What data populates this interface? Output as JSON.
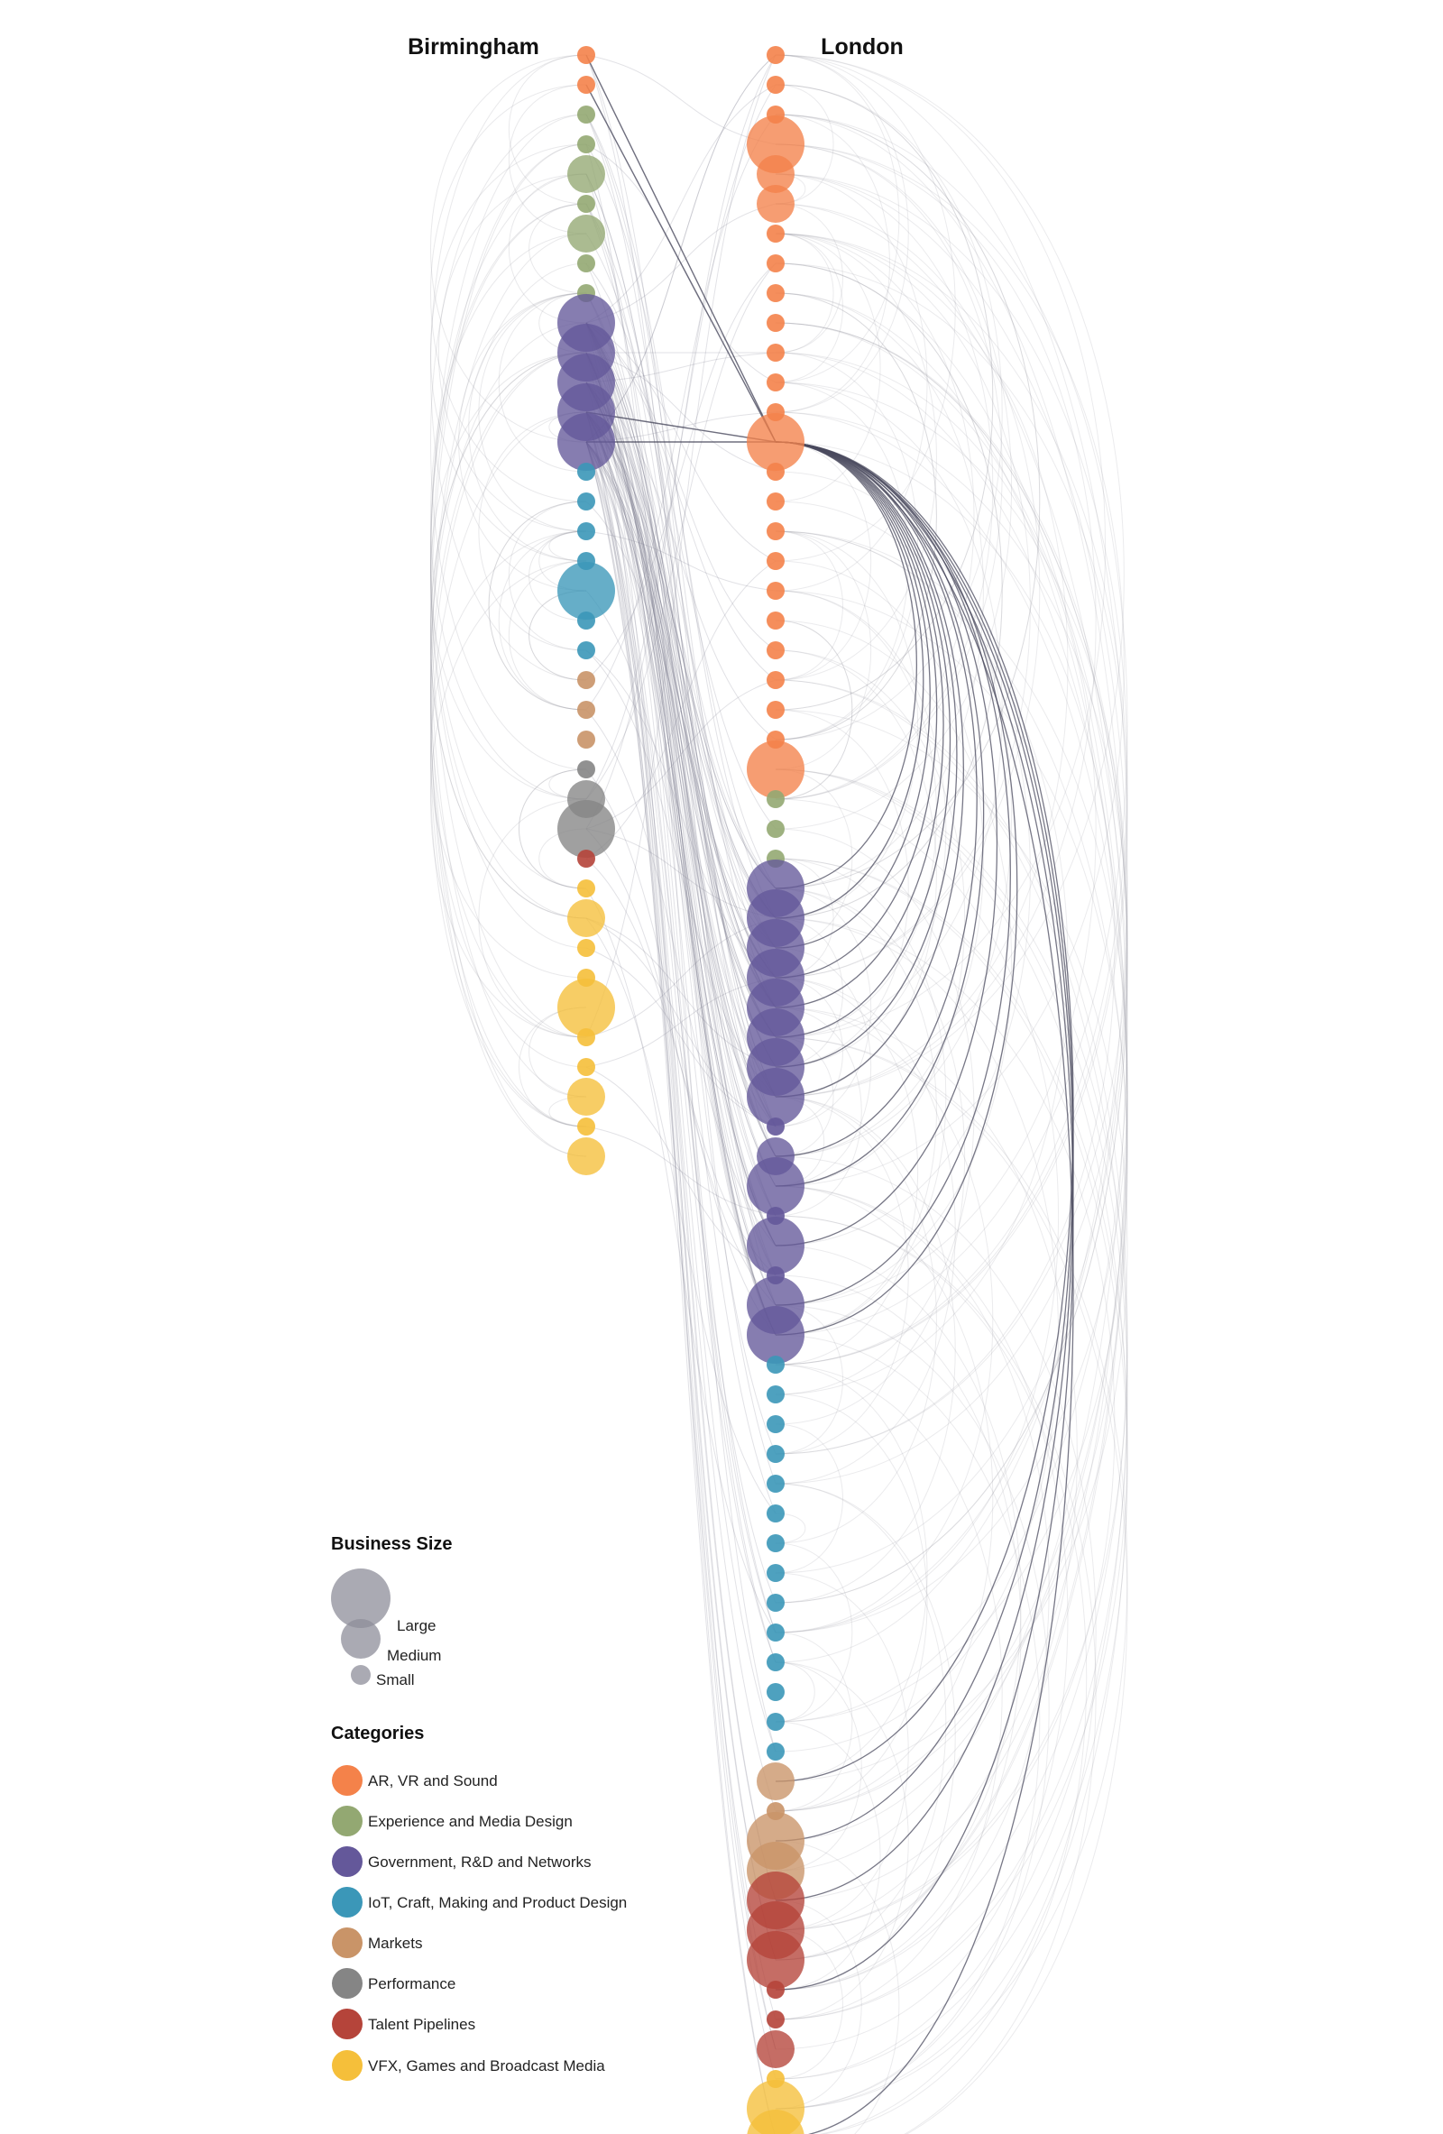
{
  "columns": {
    "left": "Birmingham",
    "right": "London"
  },
  "legend": {
    "size_title": "Business Size",
    "sizes": [
      {
        "key": "large",
        "label": "Large"
      },
      {
        "key": "medium",
        "label": "Medium"
      },
      {
        "key": "small",
        "label": "Small"
      }
    ],
    "categories_title": "Categories",
    "categories": [
      {
        "key": "ar",
        "label": "AR, VR and Sound",
        "color": "#F4824A"
      },
      {
        "key": "exp",
        "label": "Experience and Media Design",
        "color": "#93A872"
      },
      {
        "key": "gov",
        "label": "Government, R&D and Networks",
        "color": "#64589A"
      },
      {
        "key": "iot",
        "label": "IoT, Craft, Making and Product Design",
        "color": "#3B97B8"
      },
      {
        "key": "mkt",
        "label": "Markets",
        "color": "#C99468"
      },
      {
        "key": "perf",
        "label": "Performance",
        "color": "#858585"
      },
      {
        "key": "tal",
        "label": "Talent Pipelines",
        "color": "#B5443A"
      },
      {
        "key": "vfx",
        "label": "VFX, Games and Broadcast Media",
        "color": "#F5BF3A"
      }
    ]
  },
  "network": {
    "birmingham_nodes": [
      {
        "cat": "ar",
        "size": "small"
      },
      {
        "cat": "ar",
        "size": "small"
      },
      {
        "cat": "exp",
        "size": "small"
      },
      {
        "cat": "exp",
        "size": "small"
      },
      {
        "cat": "exp",
        "size": "medium"
      },
      {
        "cat": "exp",
        "size": "small"
      },
      {
        "cat": "exp",
        "size": "medium"
      },
      {
        "cat": "exp",
        "size": "small"
      },
      {
        "cat": "exp",
        "size": "small"
      },
      {
        "cat": "gov",
        "size": "large"
      },
      {
        "cat": "gov",
        "size": "large"
      },
      {
        "cat": "gov",
        "size": "large"
      },
      {
        "cat": "gov",
        "size": "large"
      },
      {
        "cat": "gov",
        "size": "large"
      },
      {
        "cat": "iot",
        "size": "small"
      },
      {
        "cat": "iot",
        "size": "small"
      },
      {
        "cat": "iot",
        "size": "small"
      },
      {
        "cat": "iot",
        "size": "small"
      },
      {
        "cat": "iot",
        "size": "large"
      },
      {
        "cat": "iot",
        "size": "small"
      },
      {
        "cat": "iot",
        "size": "small"
      },
      {
        "cat": "mkt",
        "size": "small"
      },
      {
        "cat": "mkt",
        "size": "small"
      },
      {
        "cat": "mkt",
        "size": "small"
      },
      {
        "cat": "perf",
        "size": "small"
      },
      {
        "cat": "perf",
        "size": "medium"
      },
      {
        "cat": "perf",
        "size": "large"
      },
      {
        "cat": "tal",
        "size": "small"
      },
      {
        "cat": "vfx",
        "size": "small"
      },
      {
        "cat": "vfx",
        "size": "medium"
      },
      {
        "cat": "vfx",
        "size": "small"
      },
      {
        "cat": "vfx",
        "size": "small"
      },
      {
        "cat": "vfx",
        "size": "large"
      },
      {
        "cat": "vfx",
        "size": "small"
      },
      {
        "cat": "vfx",
        "size": "small"
      },
      {
        "cat": "vfx",
        "size": "medium"
      },
      {
        "cat": "vfx",
        "size": "small"
      },
      {
        "cat": "vfx",
        "size": "medium"
      }
    ],
    "london_nodes": [
      {
        "cat": "ar",
        "size": "small"
      },
      {
        "cat": "ar",
        "size": "small"
      },
      {
        "cat": "ar",
        "size": "small"
      },
      {
        "cat": "ar",
        "size": "large"
      },
      {
        "cat": "ar",
        "size": "medium"
      },
      {
        "cat": "ar",
        "size": "medium"
      },
      {
        "cat": "ar",
        "size": "small"
      },
      {
        "cat": "ar",
        "size": "small"
      },
      {
        "cat": "ar",
        "size": "small"
      },
      {
        "cat": "ar",
        "size": "small"
      },
      {
        "cat": "ar",
        "size": "small"
      },
      {
        "cat": "ar",
        "size": "small"
      },
      {
        "cat": "ar",
        "size": "small"
      },
      {
        "cat": "ar",
        "size": "large"
      },
      {
        "cat": "ar",
        "size": "small"
      },
      {
        "cat": "ar",
        "size": "small"
      },
      {
        "cat": "ar",
        "size": "small"
      },
      {
        "cat": "ar",
        "size": "small"
      },
      {
        "cat": "ar",
        "size": "small"
      },
      {
        "cat": "ar",
        "size": "small"
      },
      {
        "cat": "ar",
        "size": "small"
      },
      {
        "cat": "ar",
        "size": "small"
      },
      {
        "cat": "ar",
        "size": "small"
      },
      {
        "cat": "ar",
        "size": "small"
      },
      {
        "cat": "ar",
        "size": "large"
      },
      {
        "cat": "exp",
        "size": "small"
      },
      {
        "cat": "exp",
        "size": "small"
      },
      {
        "cat": "exp",
        "size": "small"
      },
      {
        "cat": "gov",
        "size": "large"
      },
      {
        "cat": "gov",
        "size": "large"
      },
      {
        "cat": "gov",
        "size": "large"
      },
      {
        "cat": "gov",
        "size": "large"
      },
      {
        "cat": "gov",
        "size": "large"
      },
      {
        "cat": "gov",
        "size": "large"
      },
      {
        "cat": "gov",
        "size": "large"
      },
      {
        "cat": "gov",
        "size": "large"
      },
      {
        "cat": "gov",
        "size": "small"
      },
      {
        "cat": "gov",
        "size": "medium"
      },
      {
        "cat": "gov",
        "size": "large"
      },
      {
        "cat": "gov",
        "size": "small"
      },
      {
        "cat": "gov",
        "size": "large"
      },
      {
        "cat": "gov",
        "size": "small"
      },
      {
        "cat": "gov",
        "size": "large"
      },
      {
        "cat": "gov",
        "size": "large"
      },
      {
        "cat": "iot",
        "size": "small"
      },
      {
        "cat": "iot",
        "size": "small"
      },
      {
        "cat": "iot",
        "size": "small"
      },
      {
        "cat": "iot",
        "size": "small"
      },
      {
        "cat": "iot",
        "size": "small"
      },
      {
        "cat": "iot",
        "size": "small"
      },
      {
        "cat": "iot",
        "size": "small"
      },
      {
        "cat": "iot",
        "size": "small"
      },
      {
        "cat": "iot",
        "size": "small"
      },
      {
        "cat": "iot",
        "size": "small"
      },
      {
        "cat": "iot",
        "size": "small"
      },
      {
        "cat": "iot",
        "size": "small"
      },
      {
        "cat": "iot",
        "size": "small"
      },
      {
        "cat": "iot",
        "size": "small"
      },
      {
        "cat": "mkt",
        "size": "medium"
      },
      {
        "cat": "mkt",
        "size": "small"
      },
      {
        "cat": "mkt",
        "size": "large"
      },
      {
        "cat": "mkt",
        "size": "large"
      },
      {
        "cat": "tal",
        "size": "large"
      },
      {
        "cat": "tal",
        "size": "large"
      },
      {
        "cat": "tal",
        "size": "large"
      },
      {
        "cat": "tal",
        "size": "small"
      },
      {
        "cat": "tal",
        "size": "small"
      },
      {
        "cat": "tal",
        "size": "medium"
      },
      {
        "cat": "vfx",
        "size": "small"
      },
      {
        "cat": "vfx",
        "size": "large"
      },
      {
        "cat": "vfx",
        "size": "large"
      },
      {
        "cat": "vfx",
        "size": "small"
      }
    ]
  }
}
